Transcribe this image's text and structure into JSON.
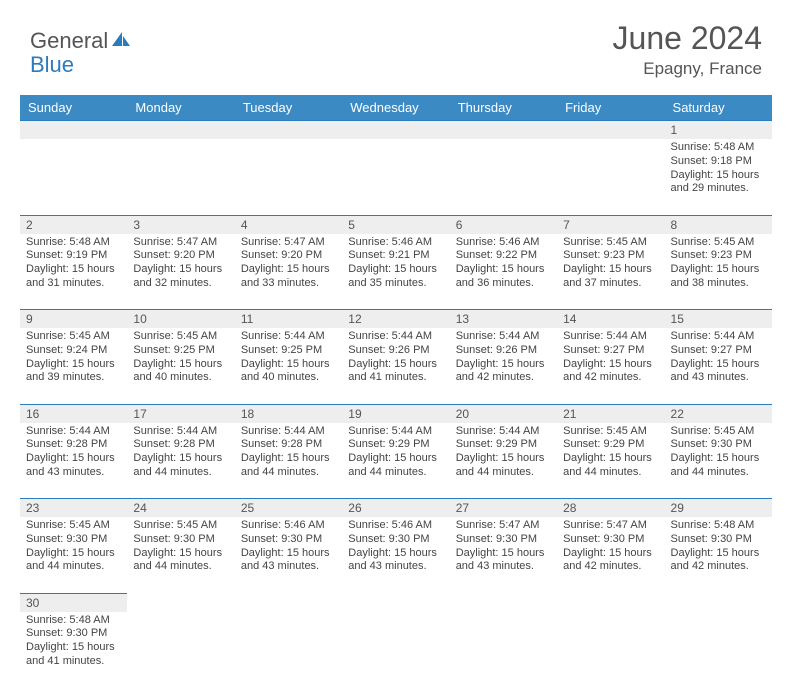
{
  "brand": {
    "general": "General",
    "blue": "Blue"
  },
  "title": "June 2024",
  "location": "Epagny, France",
  "colors": {
    "header_bg": "#3b8ac4",
    "header_text": "#ffffff",
    "daynum_bg": "#eeeeee",
    "border": "#2b7bbf",
    "text": "#444444",
    "title_color": "#555555"
  },
  "weekdays": [
    "Sunday",
    "Monday",
    "Tuesday",
    "Wednesday",
    "Thursday",
    "Friday",
    "Saturday"
  ],
  "weeks": [
    {
      "nums": [
        "",
        "",
        "",
        "",
        "",
        "",
        "1"
      ],
      "cells": [
        null,
        null,
        null,
        null,
        null,
        null,
        {
          "sunrise": "Sunrise: 5:48 AM",
          "sunset": "Sunset: 9:18 PM",
          "daylight": "Daylight: 15 hours and 29 minutes."
        }
      ]
    },
    {
      "nums": [
        "2",
        "3",
        "4",
        "5",
        "6",
        "7",
        "8"
      ],
      "cells": [
        {
          "sunrise": "Sunrise: 5:48 AM",
          "sunset": "Sunset: 9:19 PM",
          "daylight": "Daylight: 15 hours and 31 minutes."
        },
        {
          "sunrise": "Sunrise: 5:47 AM",
          "sunset": "Sunset: 9:20 PM",
          "daylight": "Daylight: 15 hours and 32 minutes."
        },
        {
          "sunrise": "Sunrise: 5:47 AM",
          "sunset": "Sunset: 9:20 PM",
          "daylight": "Daylight: 15 hours and 33 minutes."
        },
        {
          "sunrise": "Sunrise: 5:46 AM",
          "sunset": "Sunset: 9:21 PM",
          "daylight": "Daylight: 15 hours and 35 minutes."
        },
        {
          "sunrise": "Sunrise: 5:46 AM",
          "sunset": "Sunset: 9:22 PM",
          "daylight": "Daylight: 15 hours and 36 minutes."
        },
        {
          "sunrise": "Sunrise: 5:45 AM",
          "sunset": "Sunset: 9:23 PM",
          "daylight": "Daylight: 15 hours and 37 minutes."
        },
        {
          "sunrise": "Sunrise: 5:45 AM",
          "sunset": "Sunset: 9:23 PM",
          "daylight": "Daylight: 15 hours and 38 minutes."
        }
      ]
    },
    {
      "nums": [
        "9",
        "10",
        "11",
        "12",
        "13",
        "14",
        "15"
      ],
      "cells": [
        {
          "sunrise": "Sunrise: 5:45 AM",
          "sunset": "Sunset: 9:24 PM",
          "daylight": "Daylight: 15 hours and 39 minutes."
        },
        {
          "sunrise": "Sunrise: 5:45 AM",
          "sunset": "Sunset: 9:25 PM",
          "daylight": "Daylight: 15 hours and 40 minutes."
        },
        {
          "sunrise": "Sunrise: 5:44 AM",
          "sunset": "Sunset: 9:25 PM",
          "daylight": "Daylight: 15 hours and 40 minutes."
        },
        {
          "sunrise": "Sunrise: 5:44 AM",
          "sunset": "Sunset: 9:26 PM",
          "daylight": "Daylight: 15 hours and 41 minutes."
        },
        {
          "sunrise": "Sunrise: 5:44 AM",
          "sunset": "Sunset: 9:26 PM",
          "daylight": "Daylight: 15 hours and 42 minutes."
        },
        {
          "sunrise": "Sunrise: 5:44 AM",
          "sunset": "Sunset: 9:27 PM",
          "daylight": "Daylight: 15 hours and 42 minutes."
        },
        {
          "sunrise": "Sunrise: 5:44 AM",
          "sunset": "Sunset: 9:27 PM",
          "daylight": "Daylight: 15 hours and 43 minutes."
        }
      ]
    },
    {
      "nums": [
        "16",
        "17",
        "18",
        "19",
        "20",
        "21",
        "22"
      ],
      "cells": [
        {
          "sunrise": "Sunrise: 5:44 AM",
          "sunset": "Sunset: 9:28 PM",
          "daylight": "Daylight: 15 hours and 43 minutes."
        },
        {
          "sunrise": "Sunrise: 5:44 AM",
          "sunset": "Sunset: 9:28 PM",
          "daylight": "Daylight: 15 hours and 44 minutes."
        },
        {
          "sunrise": "Sunrise: 5:44 AM",
          "sunset": "Sunset: 9:28 PM",
          "daylight": "Daylight: 15 hours and 44 minutes."
        },
        {
          "sunrise": "Sunrise: 5:44 AM",
          "sunset": "Sunset: 9:29 PM",
          "daylight": "Daylight: 15 hours and 44 minutes."
        },
        {
          "sunrise": "Sunrise: 5:44 AM",
          "sunset": "Sunset: 9:29 PM",
          "daylight": "Daylight: 15 hours and 44 minutes."
        },
        {
          "sunrise": "Sunrise: 5:45 AM",
          "sunset": "Sunset: 9:29 PM",
          "daylight": "Daylight: 15 hours and 44 minutes."
        },
        {
          "sunrise": "Sunrise: 5:45 AM",
          "sunset": "Sunset: 9:30 PM",
          "daylight": "Daylight: 15 hours and 44 minutes."
        }
      ]
    },
    {
      "nums": [
        "23",
        "24",
        "25",
        "26",
        "27",
        "28",
        "29"
      ],
      "cells": [
        {
          "sunrise": "Sunrise: 5:45 AM",
          "sunset": "Sunset: 9:30 PM",
          "daylight": "Daylight: 15 hours and 44 minutes."
        },
        {
          "sunrise": "Sunrise: 5:45 AM",
          "sunset": "Sunset: 9:30 PM",
          "daylight": "Daylight: 15 hours and 44 minutes."
        },
        {
          "sunrise": "Sunrise: 5:46 AM",
          "sunset": "Sunset: 9:30 PM",
          "daylight": "Daylight: 15 hours and 43 minutes."
        },
        {
          "sunrise": "Sunrise: 5:46 AM",
          "sunset": "Sunset: 9:30 PM",
          "daylight": "Daylight: 15 hours and 43 minutes."
        },
        {
          "sunrise": "Sunrise: 5:47 AM",
          "sunset": "Sunset: 9:30 PM",
          "daylight": "Daylight: 15 hours and 43 minutes."
        },
        {
          "sunrise": "Sunrise: 5:47 AM",
          "sunset": "Sunset: 9:30 PM",
          "daylight": "Daylight: 15 hours and 42 minutes."
        },
        {
          "sunrise": "Sunrise: 5:48 AM",
          "sunset": "Sunset: 9:30 PM",
          "daylight": "Daylight: 15 hours and 42 minutes."
        }
      ]
    },
    {
      "nums": [
        "30",
        "",
        "",
        "",
        "",
        "",
        ""
      ],
      "cells": [
        {
          "sunrise": "Sunrise: 5:48 AM",
          "sunset": "Sunset: 9:30 PM",
          "daylight": "Daylight: 15 hours and 41 minutes."
        },
        null,
        null,
        null,
        null,
        null,
        null
      ]
    }
  ]
}
